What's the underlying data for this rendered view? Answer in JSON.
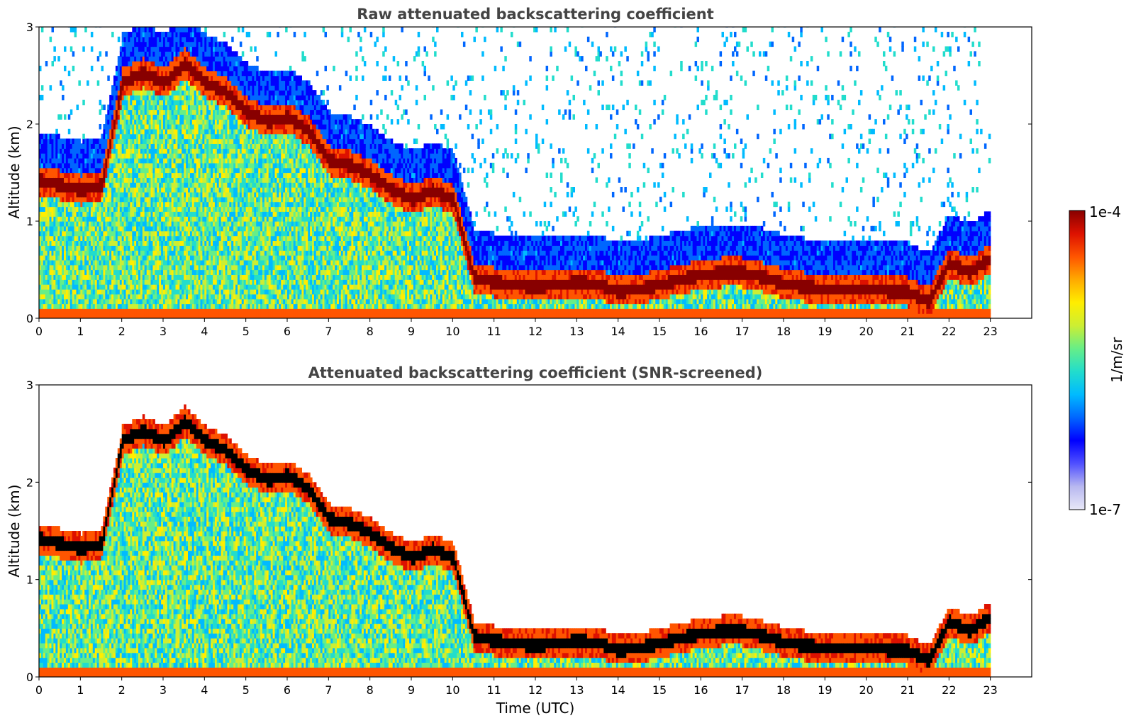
{
  "chart_data": [
    {
      "type": "heatmap",
      "title": "Raw attenuated backscattering coefficient",
      "xlabel": "",
      "ylabel": "Altitude (km)",
      "xticks": [
        "0",
        "1",
        "2",
        "3",
        "4",
        "5",
        "6",
        "7",
        "8",
        "9",
        "10",
        "11",
        "12",
        "13",
        "14",
        "15",
        "16",
        "17",
        "18",
        "19",
        "20",
        "21",
        "22",
        "23"
      ],
      "yticks": [
        "0",
        "1",
        "2",
        "3"
      ],
      "xlim": [
        0,
        24
      ],
      "ylim": [
        0,
        3
      ],
      "data_end_hour": 23,
      "noise": true,
      "layers": [
        {
          "x": [
            0.0,
            0.5,
            1.0,
            1.5,
            2.0,
            2.5,
            3.0,
            3.5,
            4.0,
            4.5,
            5.0,
            5.5,
            6.0,
            6.5,
            7.0,
            7.5,
            8.0,
            8.5,
            9.0,
            9.5,
            10.0,
            10.5,
            11.0,
            11.5,
            12.0,
            12.5,
            13.0,
            13.5,
            14.0,
            14.5,
            15.0,
            15.5,
            16.0,
            16.5,
            17.0,
            17.5,
            18.0,
            18.5,
            19.0,
            19.5,
            20.0,
            20.5,
            21.0,
            21.5,
            22.0,
            22.5,
            23.0
          ],
          "y": [
            1.4,
            1.35,
            1.3,
            1.35,
            2.4,
            2.5,
            2.4,
            2.6,
            2.4,
            2.3,
            2.1,
            2.0,
            2.05,
            1.9,
            1.6,
            1.55,
            1.45,
            1.3,
            1.2,
            1.3,
            1.2,
            0.4,
            0.35,
            0.32,
            0.3,
            0.32,
            0.35,
            0.33,
            0.25,
            0.28,
            0.32,
            0.38,
            0.42,
            0.45,
            0.45,
            0.4,
            0.33,
            0.3,
            0.28,
            0.27,
            0.26,
            0.26,
            0.25,
            0.15,
            0.55,
            0.45,
            0.6
          ]
        }
      ]
    },
    {
      "type": "heatmap",
      "title": "Attenuated backscattering coefficient (SNR-screened)",
      "xlabel": "Time (UTC)",
      "ylabel": "Altitude (km)",
      "xticks": [
        "0",
        "1",
        "2",
        "3",
        "4",
        "5",
        "6",
        "7",
        "8",
        "9",
        "10",
        "11",
        "12",
        "13",
        "14",
        "15",
        "16",
        "17",
        "18",
        "19",
        "20",
        "21",
        "22",
        "23"
      ],
      "yticks": [
        "0",
        "1",
        "2",
        "3"
      ],
      "xlim": [
        0,
        24
      ],
      "ylim": [
        0,
        3
      ],
      "data_end_hour": 23,
      "noise": false
    }
  ],
  "colorbar": {
    "label": "1/m/sr",
    "max_label": "1e-4",
    "min_label": "1e-7",
    "colors": [
      "#e8e8f8",
      "#b8b8f0",
      "#5050ff",
      "#0000ff",
      "#0066ff",
      "#00bbff",
      "#22ddcc",
      "#66ee88",
      "#ccee33",
      "#ffee00",
      "#ffaa00",
      "#ff5500",
      "#dd1100",
      "#880000"
    ]
  }
}
